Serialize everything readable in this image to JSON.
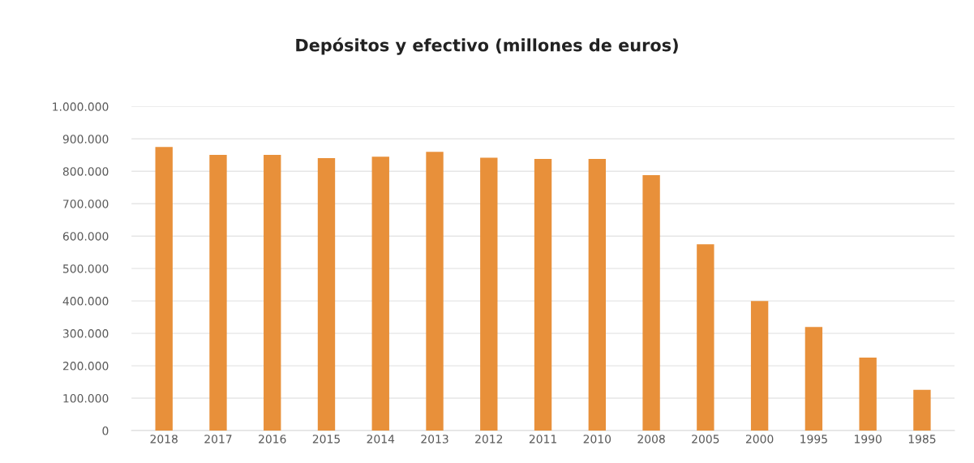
{
  "chart_data": {
    "type": "bar",
    "title": "Depósitos y efectivo (millones de euros)",
    "categories": [
      "2018",
      "2017",
      "2016",
      "2015",
      "2014",
      "2013",
      "2012",
      "2011",
      "2010",
      "2008",
      "2005",
      "2000",
      "1995",
      "1990",
      "1985"
    ],
    "values": [
      875000,
      851000,
      851000,
      841000,
      845000,
      860000,
      842000,
      838000,
      838000,
      788000,
      575000,
      400000,
      320000,
      225000,
      126000
    ],
    "color": "#e8903a",
    "ylim": [
      0,
      1000000
    ],
    "yticks": [
      {
        "value": 0,
        "label": "0"
      },
      {
        "value": 100000,
        "label": "100.000"
      },
      {
        "value": 200000,
        "label": "200.000"
      },
      {
        "value": 300000,
        "label": "300.000"
      },
      {
        "value": 400000,
        "label": "400.000"
      },
      {
        "value": 500000,
        "label": "500.000"
      },
      {
        "value": 600000,
        "label": "600.000"
      },
      {
        "value": 700000,
        "label": "700.000"
      },
      {
        "value": 800000,
        "label": "800.000"
      },
      {
        "value": 900000,
        "label": "900.000"
      },
      {
        "value": 1000000,
        "label": "1.000.000"
      }
    ],
    "grid": "y"
  }
}
